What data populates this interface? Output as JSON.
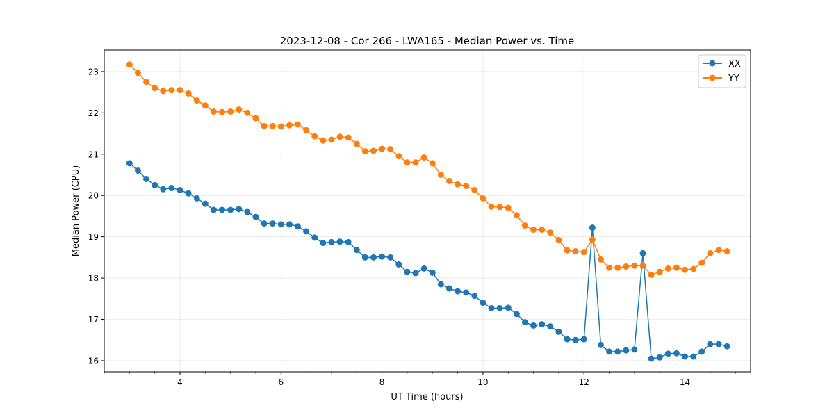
{
  "chart_data": {
    "type": "line",
    "title": "2023-12-08 - Cor 266 - LWA165 - Median Power vs. Time",
    "xlabel": "UT Time (hours)",
    "ylabel": "Median Power (CPU)",
    "xlim": [
      2.5,
      15.3
    ],
    "ylim": [
      15.73,
      23.52
    ],
    "xticks": [
      4,
      6,
      8,
      10,
      12,
      14
    ],
    "yticks": [
      16,
      17,
      18,
      19,
      20,
      21,
      22,
      23
    ],
    "x_minor_step": 0.5,
    "grid": true,
    "legend_position": "upper right",
    "colors": {
      "XX": "#1f77b4",
      "YY": "#ff7f0e"
    },
    "x": [
      3.0,
      3.167,
      3.333,
      3.5,
      3.667,
      3.833,
      4.0,
      4.167,
      4.333,
      4.5,
      4.667,
      4.833,
      5.0,
      5.167,
      5.333,
      5.5,
      5.667,
      5.833,
      6.0,
      6.167,
      6.333,
      6.5,
      6.667,
      6.833,
      7.0,
      7.167,
      7.333,
      7.5,
      7.667,
      7.833,
      8.0,
      8.167,
      8.333,
      8.5,
      8.667,
      8.833,
      9.0,
      9.167,
      9.333,
      9.5,
      9.667,
      9.833,
      10.0,
      10.167,
      10.333,
      10.5,
      10.667,
      10.833,
      11.0,
      11.167,
      11.333,
      11.5,
      11.667,
      11.833,
      12.0,
      12.167,
      12.333,
      12.5,
      12.667,
      12.833,
      13.0,
      13.167,
      13.333,
      13.5,
      13.667,
      13.833,
      14.0,
      14.167,
      14.333,
      14.5,
      14.667,
      14.833
    ],
    "series": [
      {
        "name": "XX",
        "values": [
          20.78,
          20.6,
          20.4,
          20.25,
          20.15,
          20.18,
          20.13,
          20.05,
          19.93,
          19.8,
          19.65,
          19.65,
          19.65,
          19.67,
          19.6,
          19.48,
          19.32,
          19.32,
          19.3,
          19.3,
          19.25,
          19.13,
          18.98,
          18.85,
          18.87,
          18.88,
          18.87,
          18.68,
          18.5,
          18.5,
          18.52,
          18.5,
          18.33,
          18.15,
          18.12,
          18.23,
          18.13,
          17.85,
          17.75,
          17.68,
          17.65,
          17.57,
          17.4,
          17.27,
          17.27,
          17.28,
          17.13,
          16.93,
          16.85,
          16.88,
          16.83,
          16.7,
          16.52,
          16.5,
          16.52,
          19.22,
          16.38,
          16.22,
          16.22,
          16.25,
          16.27,
          18.6,
          16.05,
          16.08,
          16.17,
          16.18,
          16.1,
          16.1,
          16.22,
          16.4,
          16.4,
          16.35
        ]
      },
      {
        "name": "YY",
        "values": [
          23.17,
          22.97,
          22.75,
          22.6,
          22.53,
          22.55,
          22.55,
          22.47,
          22.3,
          22.18,
          22.03,
          22.02,
          22.03,
          22.08,
          22.0,
          21.87,
          21.68,
          21.68,
          21.67,
          21.7,
          21.72,
          21.58,
          21.43,
          21.33,
          21.35,
          21.42,
          21.4,
          21.25,
          21.07,
          21.08,
          21.13,
          21.12,
          20.95,
          20.8,
          20.8,
          20.92,
          20.78,
          20.5,
          20.35,
          20.27,
          20.23,
          20.13,
          19.93,
          19.73,
          19.72,
          19.7,
          19.52,
          19.27,
          19.17,
          19.17,
          19.1,
          18.92,
          18.67,
          18.65,
          18.63,
          18.93,
          18.45,
          18.25,
          18.25,
          18.28,
          18.3,
          18.3,
          18.08,
          18.15,
          18.23,
          18.25,
          18.2,
          18.22,
          18.37,
          18.6,
          18.68,
          18.65
        ]
      }
    ]
  }
}
